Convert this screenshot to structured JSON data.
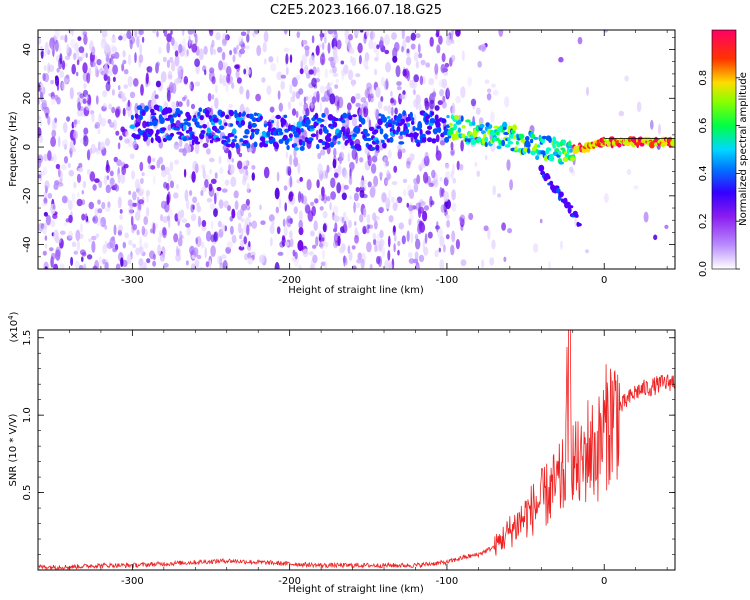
{
  "figure": {
    "title": "C2E5.2023.166.07.18.G25"
  },
  "chart_data": [
    {
      "type": "heatmap",
      "xlabel": "Height of straight line (km)",
      "ylabel": "Frequency (Hz)",
      "xlim": [
        -360,
        45
      ],
      "ylim": [
        -50,
        48
      ],
      "x_ticks": [
        -300,
        -200,
        -100,
        0
      ],
      "x_tick_labels": [
        "-300",
        "-200",
        "-100",
        "0"
      ],
      "y_ticks": [
        -40,
        -20,
        0,
        20,
        40
      ],
      "y_tick_labels": [
        "-40",
        "-20",
        "0",
        "20",
        "40"
      ],
      "colormap": [
        "#ffffff",
        "#b58aff",
        "#8b2cf0",
        "#4a00ff",
        "#0066ff",
        "#00c8ff",
        "#00ff66",
        "#b4ff00",
        "#ffcc00",
        "#ff3300",
        "#ff0066"
      ],
      "colorbar": {
        "label": "Normalized spectral amplitude",
        "range": [
          0,
          1
        ],
        "ticks": [
          0.0,
          0.2,
          0.4,
          0.6,
          0.8
        ],
        "tick_labels": [
          "0.0",
          "0.2",
          "0.4",
          "0.6",
          "0.8"
        ]
      },
      "features": [
        {
          "name": "ridge",
          "x": [
            -300,
            -250,
            -200,
            -150,
            -100,
            -60,
            -30,
            -10,
            0,
            20,
            45
          ],
          "y": [
            10,
            8,
            6,
            6,
            8,
            4,
            -2,
            0,
            2,
            2,
            2
          ]
        },
        {
          "name": "branch",
          "x": [
            -40,
            -25,
            -15
          ],
          "y": [
            -10,
            -22,
            -32
          ]
        }
      ]
    },
    {
      "type": "line",
      "xlabel": "Height of straight line (km)",
      "ylabel": "SNR (10 * V/V)",
      "y_multiplier": "(x10",
      "y_multiplier_exp": "4",
      "y_multiplier_close": ")",
      "xlim": [
        -360,
        45
      ],
      "ylim": [
        0,
        1.55
      ],
      "x_ticks": [
        -300,
        -200,
        -100,
        0
      ],
      "x_tick_labels": [
        "-300",
        "-200",
        "-100",
        "0"
      ],
      "y_ticks": [
        0.5,
        1.0,
        1.5
      ],
      "y_tick_labels": [
        "0.5",
        "1.0",
        "1.5"
      ],
      "color": "#ee2222",
      "series": [
        {
          "x": [
            -360,
            -340,
            -320,
            -300,
            -280,
            -260,
            -240,
            -220,
            -200,
            -180,
            -160,
            -140,
            -120,
            -100,
            -90,
            -80,
            -70,
            -60,
            -55,
            -50,
            -45,
            -40,
            -35,
            -30,
            -25,
            -22,
            -20,
            -15,
            -10,
            -5,
            0,
            5,
            10,
            15,
            20,
            25,
            30,
            35,
            40,
            45
          ],
          "y": [
            0.02,
            0.02,
            0.03,
            0.03,
            0.04,
            0.05,
            0.06,
            0.05,
            0.04,
            0.03,
            0.03,
            0.03,
            0.03,
            0.05,
            0.08,
            0.1,
            0.15,
            0.25,
            0.3,
            0.35,
            0.4,
            0.45,
            0.5,
            0.55,
            0.6,
            1.5,
            0.7,
            0.65,
            0.8,
            0.75,
            0.9,
            1.0,
            1.05,
            1.1,
            1.15,
            1.17,
            1.18,
            1.2,
            1.21,
            1.22
          ]
        }
      ]
    }
  ]
}
